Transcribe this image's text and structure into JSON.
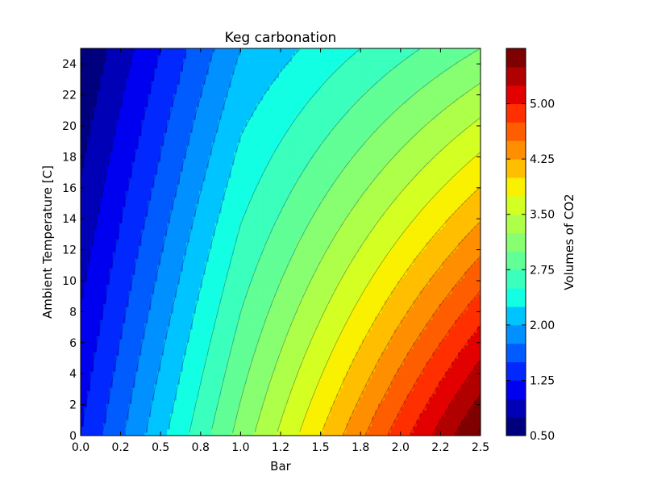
{
  "chart_data": {
    "type": "contour",
    "title": "Keg carbonation",
    "xlabel": "Bar",
    "ylabel": "Ambient Temperature [C]",
    "xlim": [
      0.0,
      2.5
    ],
    "ylim": [
      0,
      25
    ],
    "x_ticks": [
      "0.0",
      "0.2",
      "0.5",
      "0.8",
      "1.0",
      "1.2",
      "1.5",
      "1.8",
      "2.0",
      "2.2",
      "2.5"
    ],
    "x_tick_values": [
      0.0,
      0.25,
      0.5,
      0.75,
      1.0,
      1.25,
      1.5,
      1.75,
      2.0,
      2.25,
      2.5
    ],
    "y_ticks": [
      "0",
      "2",
      "4",
      "6",
      "8",
      "10",
      "12",
      "14",
      "16",
      "18",
      "20",
      "22",
      "24"
    ],
    "y_tick_values": [
      0,
      2,
      4,
      6,
      8,
      10,
      12,
      14,
      16,
      18,
      20,
      22,
      24
    ],
    "colorbar": {
      "label": "Volumes of CO2",
      "range": [
        0.5,
        5.75
      ],
      "step": 0.25,
      "tick_labels": [
        "0.50",
        "1.25",
        "2.00",
        "2.75",
        "3.50",
        "4.25",
        "5.00"
      ],
      "tick_values": [
        0.5,
        1.25,
        2.0,
        2.75,
        3.5,
        4.25,
        5.0
      ]
    },
    "contour_levels": [
      0.5,
      0.75,
      1.0,
      1.25,
      1.5,
      1.75,
      2.0,
      2.25,
      2.5,
      2.75,
      3.0,
      3.25,
      3.5,
      3.75,
      4.0,
      4.25,
      4.5,
      4.75,
      5.0,
      5.25,
      5.5,
      5.75
    ],
    "level_colors": [
      "#00007f",
      "#0000b6",
      "#0000f1",
      "#0028ff",
      "#005cff",
      "#0090ff",
      "#00c4ff",
      "#12ffe4",
      "#3affbd",
      "#61ff96",
      "#87ff70",
      "#aeff49",
      "#d4ff22",
      "#f9f100",
      "#ffbf00",
      "#ff8f00",
      "#ff5e00",
      "#ff2f00",
      "#e20000",
      "#b00000",
      "#7f0000"
    ],
    "sample_values": [
      {
        "bar": 0.0,
        "temp_c": 25,
        "volumes": 0.5
      },
      {
        "bar": 0.0,
        "temp_c": 0,
        "volumes": 1.25
      },
      {
        "bar": 1.0,
        "temp_c": 25,
        "volumes": 2.0
      },
      {
        "bar": 1.0,
        "temp_c": 0,
        "volumes": 3.1
      },
      {
        "bar": 2.5,
        "temp_c": 25,
        "volumes": 3.0
      },
      {
        "bar": 2.5,
        "temp_c": 0,
        "volumes": 5.8
      }
    ]
  }
}
